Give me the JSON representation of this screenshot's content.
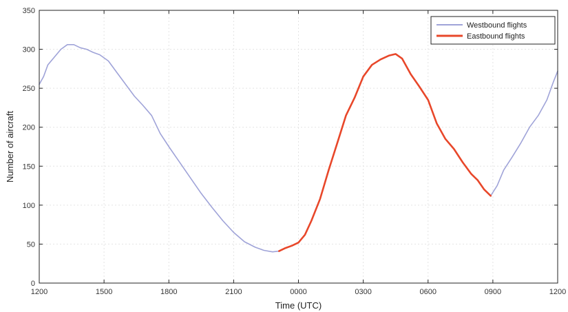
{
  "chart_data": {
    "type": "line",
    "title": "",
    "xlabel": "Time (UTC)",
    "ylabel": "Number of aircraft",
    "x_tick_labels": [
      "1200",
      "1500",
      "1800",
      "2100",
      "0000",
      "0300",
      "0600",
      "0900",
      "1200"
    ],
    "x_tick_hours": [
      0,
      3,
      6,
      9,
      12,
      15,
      18,
      21,
      24
    ],
    "y_ticks": [
      0,
      50,
      100,
      150,
      200,
      250,
      300,
      350
    ],
    "ylim": [
      0,
      350
    ],
    "xlim_hours_from_1200": [
      0,
      24
    ],
    "grid": true,
    "legend_position": "top-right",
    "series": [
      {
        "name": "Westbound flights",
        "color": "#9fa3d8",
        "segments": [
          [
            {
              "x": 0.0,
              "y": 255
            },
            {
              "x": 0.2,
              "y": 265
            },
            {
              "x": 0.4,
              "y": 280
            },
            {
              "x": 0.7,
              "y": 290
            },
            {
              "x": 1.0,
              "y": 300
            },
            {
              "x": 1.3,
              "y": 306
            },
            {
              "x": 1.6,
              "y": 306
            },
            {
              "x": 1.9,
              "y": 302
            },
            {
              "x": 2.2,
              "y": 300
            },
            {
              "x": 2.5,
              "y": 296
            },
            {
              "x": 2.8,
              "y": 293
            },
            {
              "x": 3.2,
              "y": 285
            },
            {
              "x": 3.6,
              "y": 270
            },
            {
              "x": 4.0,
              "y": 255
            },
            {
              "x": 4.4,
              "y": 240
            },
            {
              "x": 4.8,
              "y": 228
            },
            {
              "x": 5.2,
              "y": 215
            },
            {
              "x": 5.6,
              "y": 192
            },
            {
              "x": 6.0,
              "y": 175
            },
            {
              "x": 6.5,
              "y": 155
            },
            {
              "x": 7.0,
              "y": 135
            },
            {
              "x": 7.5,
              "y": 115
            },
            {
              "x": 8.0,
              "y": 97
            },
            {
              "x": 8.5,
              "y": 80
            },
            {
              "x": 9.0,
              "y": 65
            },
            {
              "x": 9.5,
              "y": 53
            },
            {
              "x": 10.0,
              "y": 46
            },
            {
              "x": 10.4,
              "y": 42
            },
            {
              "x": 10.8,
              "y": 40
            },
            {
              "x": 11.1,
              "y": 41
            }
          ],
          [
            {
              "x": 20.9,
              "y": 112
            },
            {
              "x": 21.2,
              "y": 125
            },
            {
              "x": 21.5,
              "y": 145
            },
            {
              "x": 21.9,
              "y": 162
            },
            {
              "x": 22.3,
              "y": 180
            },
            {
              "x": 22.7,
              "y": 200
            },
            {
              "x": 23.1,
              "y": 215
            },
            {
              "x": 23.5,
              "y": 235
            },
            {
              "x": 23.8,
              "y": 258
            },
            {
              "x": 24.0,
              "y": 272
            }
          ]
        ]
      },
      {
        "name": "Eastbound flights",
        "color": "#e8472a",
        "segments": [
          [
            {
              "x": 11.1,
              "y": 41
            },
            {
              "x": 11.4,
              "y": 45
            },
            {
              "x": 11.7,
              "y": 48
            },
            {
              "x": 12.0,
              "y": 52
            },
            {
              "x": 12.3,
              "y": 62
            },
            {
              "x": 12.6,
              "y": 80
            },
            {
              "x": 13.0,
              "y": 108
            },
            {
              "x": 13.4,
              "y": 145
            },
            {
              "x": 13.8,
              "y": 180
            },
            {
              "x": 14.2,
              "y": 215
            },
            {
              "x": 14.6,
              "y": 238
            },
            {
              "x": 15.0,
              "y": 265
            },
            {
              "x": 15.4,
              "y": 280
            },
            {
              "x": 15.8,
              "y": 287
            },
            {
              "x": 16.2,
              "y": 292
            },
            {
              "x": 16.5,
              "y": 294
            },
            {
              "x": 16.8,
              "y": 288
            },
            {
              "x": 17.2,
              "y": 268
            },
            {
              "x": 17.6,
              "y": 252
            },
            {
              "x": 18.0,
              "y": 235
            },
            {
              "x": 18.4,
              "y": 205
            },
            {
              "x": 18.8,
              "y": 185
            },
            {
              "x": 19.2,
              "y": 172
            },
            {
              "x": 19.6,
              "y": 155
            },
            {
              "x": 20.0,
              "y": 140
            },
            {
              "x": 20.3,
              "y": 132
            },
            {
              "x": 20.6,
              "y": 120
            },
            {
              "x": 20.9,
              "y": 112
            }
          ]
        ]
      }
    ]
  }
}
